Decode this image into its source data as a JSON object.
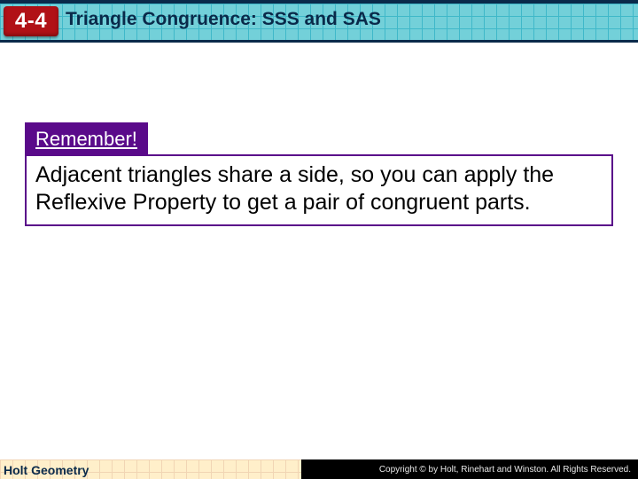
{
  "header": {
    "lesson_number": "4-4",
    "title": "Triangle Congruence: SSS and SAS",
    "band_bg": "#73d0d9",
    "band_grid": "#3fb8c9",
    "band_border": "#0a2a4a",
    "chip_bg": "#b11116",
    "title_color": "#0a2a4a"
  },
  "callout": {
    "tab_label": "Remember!",
    "tab_bg": "#5a0a8a",
    "tab_fg": "#ffffff",
    "body_text": "Adjacent triangles share a side, so you can apply the Reflexive Property to get a pair of congruent parts.",
    "border_color": "#5a0a8a",
    "body_fontsize": 25
  },
  "footer": {
    "left_text": "Holt Geometry",
    "copyright": "Copyright © by Holt, Rinehart and Winston. All Rights Reserved.",
    "grid_bg": "#ffd36b",
    "grid_line": "#d98a2a",
    "bar_bg": "#000000"
  }
}
